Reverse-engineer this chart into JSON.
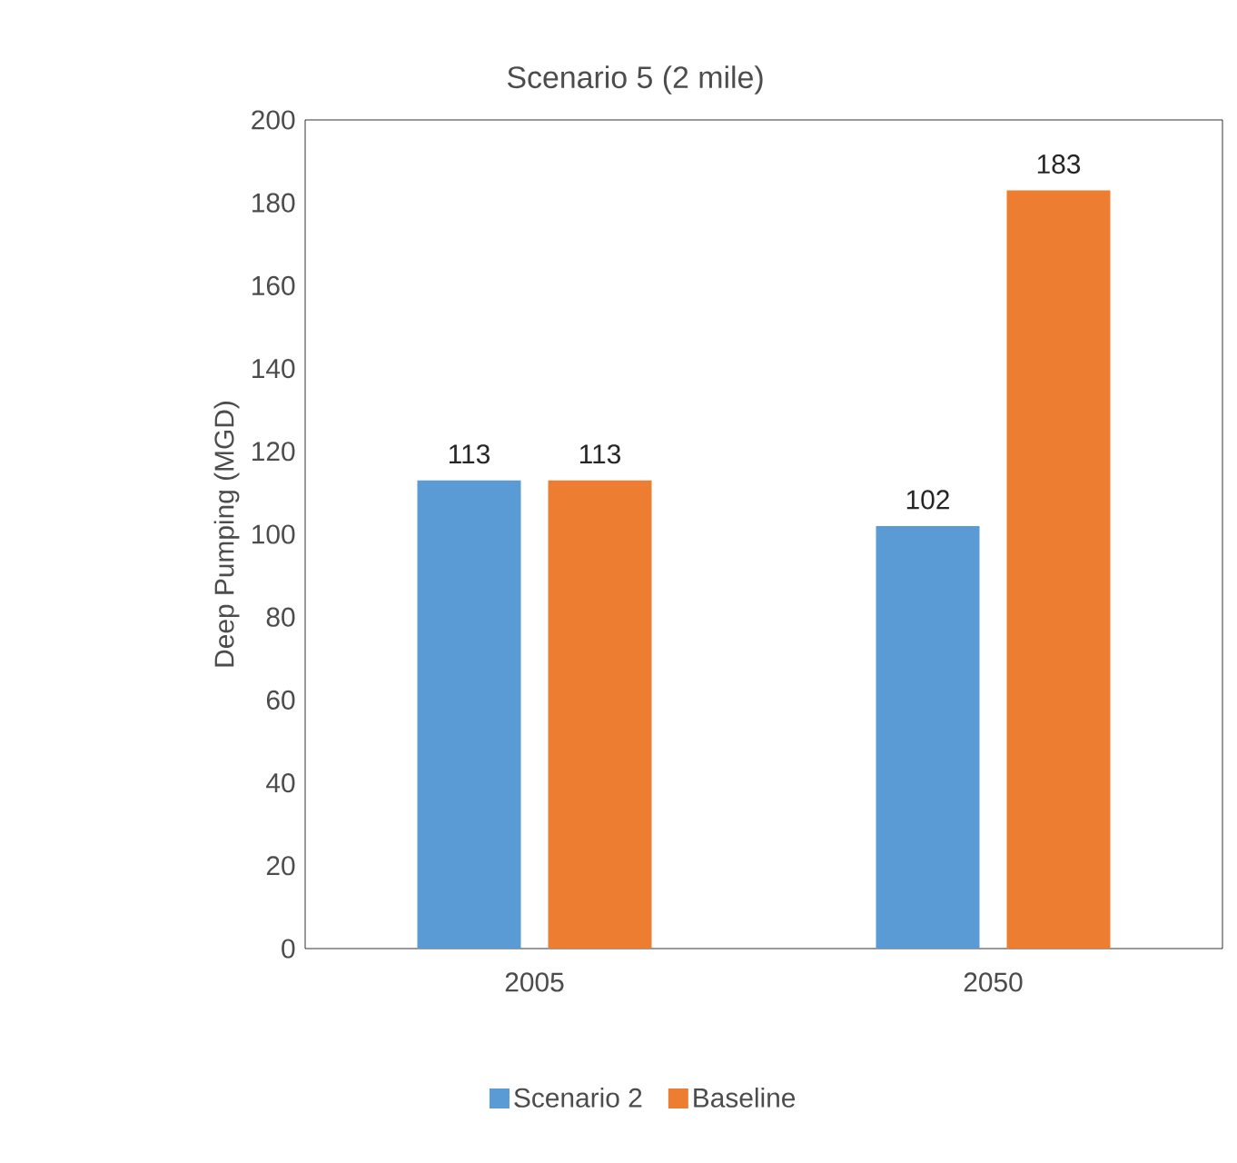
{
  "chart_data": {
    "type": "bar",
    "title": "Scenario 5 (2 mile)",
    "ylabel": "Deep Pumping (MGD)",
    "categories": [
      "2005",
      "2050"
    ],
    "series": [
      {
        "name": "Scenario 2",
        "color": "#5b9bd5",
        "values": [
          113,
          102
        ]
      },
      {
        "name": "Baseline",
        "color": "#ed7d31",
        "values": [
          113,
          183
        ]
      }
    ],
    "ylim": [
      0,
      200
    ],
    "yticks": [
      0,
      20,
      40,
      60,
      80,
      100,
      120,
      140,
      160,
      180,
      200
    ],
    "data_labels": true,
    "legend": "bottom",
    "grid": false
  }
}
